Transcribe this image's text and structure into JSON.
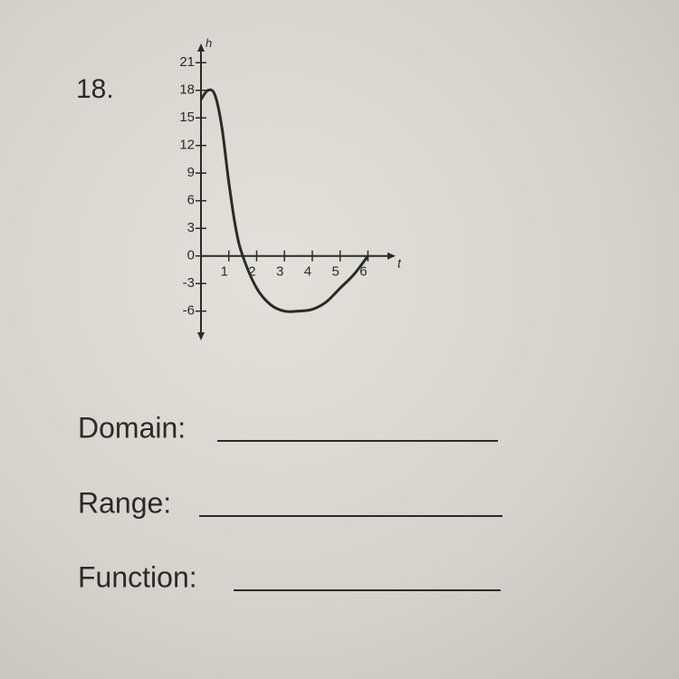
{
  "problem_number": "18.",
  "chart_data": {
    "type": "line",
    "x_label": "t",
    "y_label": "h",
    "x": [
      0,
      0.25,
      0.5,
      0.75,
      1,
      1.25,
      1.5,
      2,
      2.5,
      3,
      3.5,
      4,
      4.5,
      5,
      5.5,
      6
    ],
    "values": [
      17,
      18,
      17.5,
      14,
      8,
      3,
      0,
      -3.5,
      -5.3,
      -6,
      -6,
      -5.8,
      -5,
      -3.5,
      -2,
      0
    ],
    "color": "#2a2a2a",
    "xlim": [
      0,
      6.8
    ],
    "ylim": [
      -8,
      22.5
    ],
    "xticks": [
      1,
      2,
      3,
      4,
      5,
      6
    ],
    "yticks": [
      -6,
      -3,
      0,
      3,
      6,
      9,
      12,
      15,
      18,
      21
    ]
  },
  "prompts": [
    "Domain:",
    "Range:",
    "Function:"
  ]
}
